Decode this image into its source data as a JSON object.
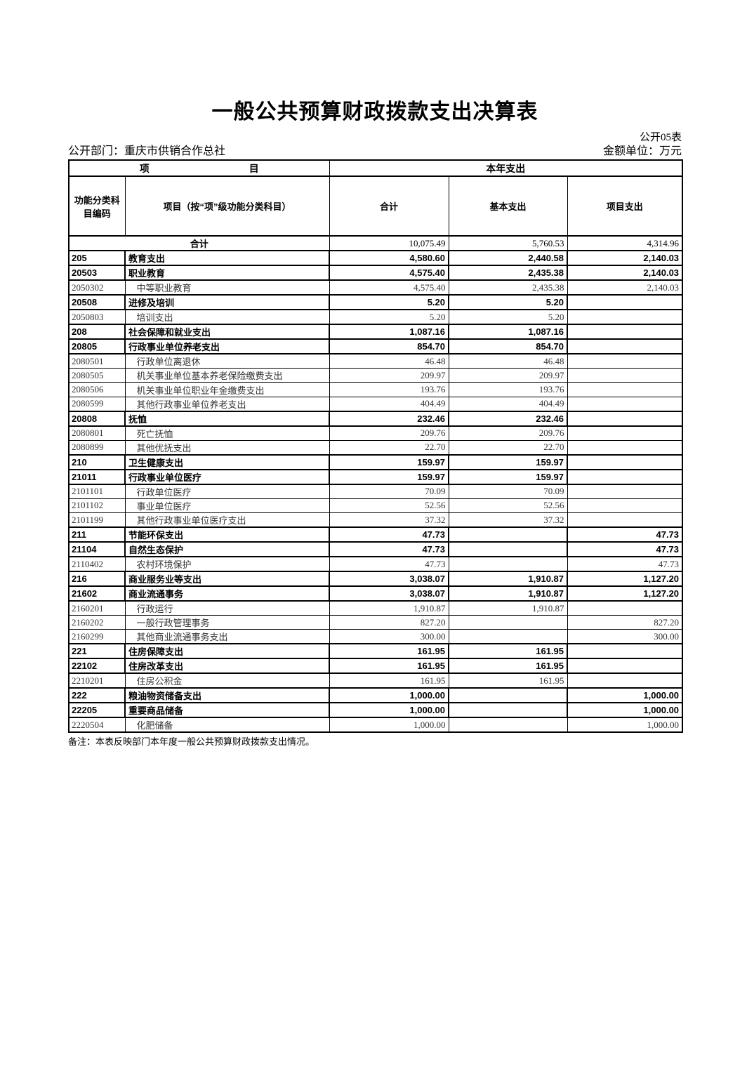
{
  "page": {
    "title": "一般公共预算财政拨款支出决算表",
    "table_code": "公开05表",
    "department_label": "公开部门：重庆市供销合作总社",
    "unit_label": "金额单位：万元",
    "note": "备注：本表反映部门本年度一般公共预算财政拨款支出情况。"
  },
  "table": {
    "header": {
      "item_group_part1": "项",
      "item_group_part2": "目",
      "year_group": "本年支出",
      "code_col": "功能分类科目编码",
      "item_col": "项目（按“项”级功能分类科目）",
      "total_col": "合计",
      "basic_col": "基本支出",
      "project_col": "项目支出"
    },
    "rows": [
      {
        "level": "grand",
        "code": "",
        "name": "合计",
        "total": "10,075.49",
        "basic": "5,760.53",
        "project": "4,314.96"
      },
      {
        "level": "bold",
        "code": "205",
        "name": "教育支出",
        "total": "4,580.60",
        "basic": "2,440.58",
        "project": "2,140.03"
      },
      {
        "level": "bold",
        "code": "20503",
        "name": "职业教育",
        "total": "4,575.40",
        "basic": "2,435.38",
        "project": "2,140.03"
      },
      {
        "level": "detail",
        "code": "2050302",
        "name": "中等职业教育",
        "total": "4,575.40",
        "basic": "2,435.38",
        "project": "2,140.03"
      },
      {
        "level": "bold",
        "code": "20508",
        "name": "进修及培训",
        "total": "5.20",
        "basic": "5.20",
        "project": ""
      },
      {
        "level": "detail",
        "code": "2050803",
        "name": "培训支出",
        "total": "5.20",
        "basic": "5.20",
        "project": ""
      },
      {
        "level": "bold",
        "code": "208",
        "name": "社会保障和就业支出",
        "total": "1,087.16",
        "basic": "1,087.16",
        "project": ""
      },
      {
        "level": "bold",
        "code": "20805",
        "name": "行政事业单位养老支出",
        "total": "854.70",
        "basic": "854.70",
        "project": ""
      },
      {
        "level": "detail",
        "code": "2080501",
        "name": "行政单位离退休",
        "total": "46.48",
        "basic": "46.48",
        "project": ""
      },
      {
        "level": "detail",
        "code": "2080505",
        "name": "机关事业单位基本养老保险缴费支出",
        "total": "209.97",
        "basic": "209.97",
        "project": ""
      },
      {
        "level": "detail",
        "code": "2080506",
        "name": "机关事业单位职业年金缴费支出",
        "total": "193.76",
        "basic": "193.76",
        "project": ""
      },
      {
        "level": "detail",
        "code": "2080599",
        "name": "其他行政事业单位养老支出",
        "total": "404.49",
        "basic": "404.49",
        "project": ""
      },
      {
        "level": "bold",
        "code": "20808",
        "name": "抚恤",
        "total": "232.46",
        "basic": "232.46",
        "project": ""
      },
      {
        "level": "detail",
        "code": "2080801",
        "name": "死亡抚恤",
        "total": "209.76",
        "basic": "209.76",
        "project": ""
      },
      {
        "level": "detail",
        "code": "2080899",
        "name": "其他优抚支出",
        "total": "22.70",
        "basic": "22.70",
        "project": ""
      },
      {
        "level": "bold",
        "code": "210",
        "name": "卫生健康支出",
        "total": "159.97",
        "basic": "159.97",
        "project": ""
      },
      {
        "level": "bold",
        "code": "21011",
        "name": "行政事业单位医疗",
        "total": "159.97",
        "basic": "159.97",
        "project": ""
      },
      {
        "level": "detail",
        "code": "2101101",
        "name": "行政单位医疗",
        "total": "70.09",
        "basic": "70.09",
        "project": ""
      },
      {
        "level": "detail",
        "code": "2101102",
        "name": "事业单位医疗",
        "total": "52.56",
        "basic": "52.56",
        "project": ""
      },
      {
        "level": "detail",
        "code": "2101199",
        "name": "其他行政事业单位医疗支出",
        "total": "37.32",
        "basic": "37.32",
        "project": ""
      },
      {
        "level": "bold",
        "code": "211",
        "name": "节能环保支出",
        "total": "47.73",
        "basic": "",
        "project": "47.73"
      },
      {
        "level": "bold",
        "code": "21104",
        "name": "自然生态保护",
        "total": "47.73",
        "basic": "",
        "project": "47.73"
      },
      {
        "level": "detail",
        "code": "2110402",
        "name": "农村环境保护",
        "total": "47.73",
        "basic": "",
        "project": "47.73"
      },
      {
        "level": "bold",
        "code": "216",
        "name": "商业服务业等支出",
        "total": "3,038.07",
        "basic": "1,910.87",
        "project": "1,127.20"
      },
      {
        "level": "bold",
        "code": "21602",
        "name": "商业流通事务",
        "total": "3,038.07",
        "basic": "1,910.87",
        "project": "1,127.20"
      },
      {
        "level": "detail",
        "code": "2160201",
        "name": "行政运行",
        "total": "1,910.87",
        "basic": "1,910.87",
        "project": ""
      },
      {
        "level": "detail",
        "code": "2160202",
        "name": "一般行政管理事务",
        "total": "827.20",
        "basic": "",
        "project": "827.20"
      },
      {
        "level": "detail",
        "code": "2160299",
        "name": "其他商业流通事务支出",
        "total": "300.00",
        "basic": "",
        "project": "300.00"
      },
      {
        "level": "bold",
        "code": "221",
        "name": "住房保障支出",
        "total": "161.95",
        "basic": "161.95",
        "project": ""
      },
      {
        "level": "bold",
        "code": "22102",
        "name": "住房改革支出",
        "total": "161.95",
        "basic": "161.95",
        "project": ""
      },
      {
        "level": "detail",
        "code": "2210201",
        "name": "住房公积金",
        "total": "161.95",
        "basic": "161.95",
        "project": ""
      },
      {
        "level": "bold",
        "code": "222",
        "name": "粮油物资储备支出",
        "total": "1,000.00",
        "basic": "",
        "project": "1,000.00"
      },
      {
        "level": "bold",
        "code": "22205",
        "name": "重要商品储备",
        "total": "1,000.00",
        "basic": "",
        "project": "1,000.00"
      },
      {
        "level": "detail",
        "code": "2220504",
        "name": "化肥储备",
        "total": "1,000.00",
        "basic": "",
        "project": "1,000.00"
      }
    ]
  }
}
